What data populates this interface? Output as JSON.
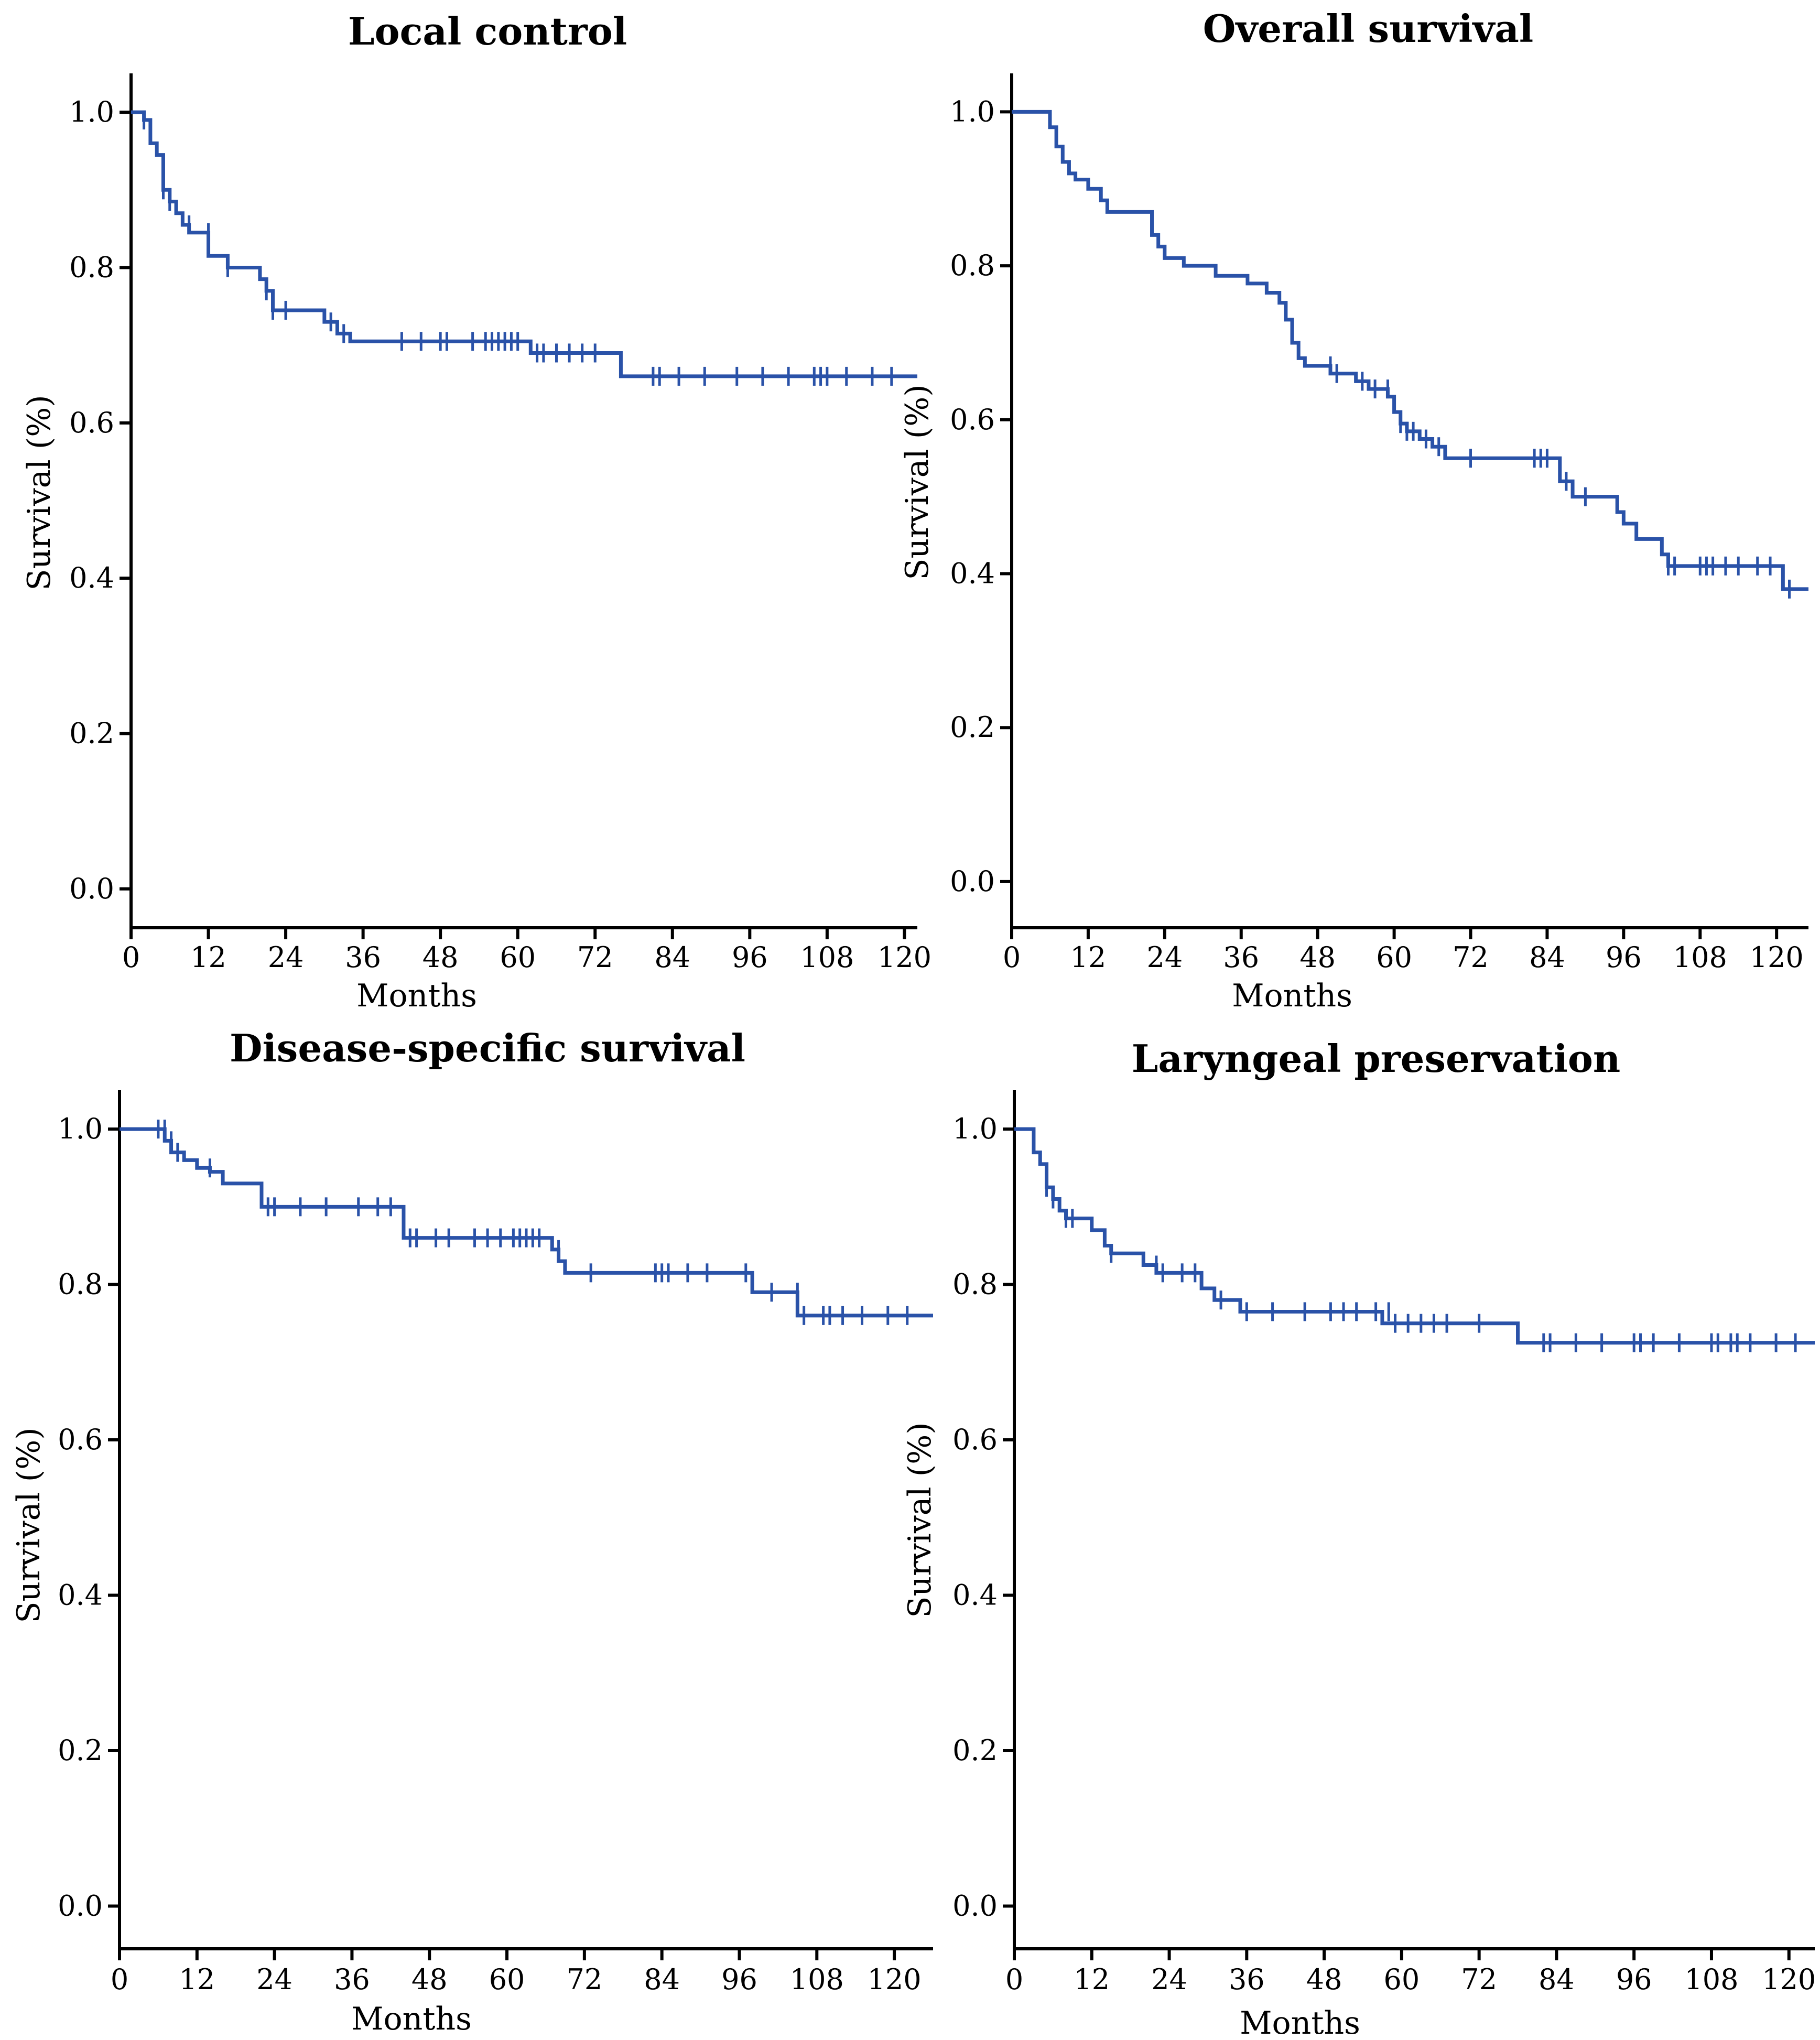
{
  "chart_data": [
    {
      "type": "line",
      "subtype": "kaplan-meier",
      "title": "Local control",
      "xlabel": "Months",
      "ylabel": "Survival (%)",
      "xlim": [
        0,
        122
      ],
      "ylim": [
        -0.05,
        1.05
      ],
      "xticks": [
        0,
        12,
        24,
        36,
        48,
        60,
        72,
        84,
        96,
        108,
        120
      ],
      "yticks": [
        "0.0",
        "0.2",
        "0.4",
        "0.6",
        "0.8",
        "1.0"
      ],
      "steps": [
        [
          0,
          1.0
        ],
        [
          2,
          0.99
        ],
        [
          3,
          0.96
        ],
        [
          4,
          0.945
        ],
        [
          5,
          0.9
        ],
        [
          6,
          0.885
        ],
        [
          7,
          0.87
        ],
        [
          8,
          0.855
        ],
        [
          9,
          0.845
        ],
        [
          12,
          0.815
        ],
        [
          15,
          0.8
        ],
        [
          20,
          0.785
        ],
        [
          21,
          0.77
        ],
        [
          22,
          0.745
        ],
        [
          30,
          0.73
        ],
        [
          32,
          0.715
        ],
        [
          34,
          0.705
        ],
        [
          62,
          0.69
        ],
        [
          76,
          0.66
        ]
      ],
      "censored": [
        [
          2,
          0.99
        ],
        [
          5,
          0.9
        ],
        [
          6,
          0.885
        ],
        [
          9,
          0.855
        ],
        [
          12,
          0.845
        ],
        [
          15,
          0.8
        ],
        [
          21,
          0.77
        ],
        [
          22,
          0.745
        ],
        [
          24,
          0.745
        ],
        [
          31,
          0.73
        ],
        [
          33,
          0.715
        ],
        [
          42,
          0.705
        ],
        [
          45,
          0.705
        ],
        [
          48,
          0.705
        ],
        [
          49,
          0.705
        ],
        [
          53,
          0.705
        ],
        [
          55,
          0.705
        ],
        [
          56,
          0.705
        ],
        [
          57,
          0.705
        ],
        [
          58,
          0.705
        ],
        [
          59,
          0.705
        ],
        [
          60,
          0.705
        ],
        [
          63,
          0.69
        ],
        [
          64,
          0.69
        ],
        [
          66,
          0.69
        ],
        [
          68,
          0.69
        ],
        [
          70,
          0.69
        ],
        [
          72,
          0.69
        ],
        [
          81,
          0.66
        ],
        [
          82,
          0.66
        ],
        [
          85,
          0.66
        ],
        [
          89,
          0.66
        ],
        [
          94,
          0.66
        ],
        [
          98,
          0.66
        ],
        [
          102,
          0.66
        ],
        [
          106,
          0.66
        ],
        [
          107,
          0.66
        ],
        [
          108,
          0.66
        ],
        [
          111,
          0.66
        ],
        [
          115,
          0.66
        ],
        [
          118,
          0.66
        ]
      ]
    },
    {
      "type": "line",
      "subtype": "kaplan-meier",
      "title": "Overall survival",
      "xlabel": "Months",
      "ylabel": "Survival (%)",
      "xlim": [
        0,
        125
      ],
      "ylim": [
        -0.06,
        1.05
      ],
      "xticks": [
        0,
        12,
        24,
        36,
        48,
        60,
        72,
        84,
        96,
        108,
        120
      ],
      "yticks": [
        "0.0",
        "0.2",
        "0.4",
        "0.6",
        "0.8",
        "1.0"
      ],
      "steps": [
        [
          0,
          1.0
        ],
        [
          6,
          0.98
        ],
        [
          7,
          0.955
        ],
        [
          8,
          0.935
        ],
        [
          9,
          0.92
        ],
        [
          10,
          0.912
        ],
        [
          12,
          0.9
        ],
        [
          14,
          0.885
        ],
        [
          15,
          0.87
        ],
        [
          22,
          0.84
        ],
        [
          23,
          0.825
        ],
        [
          24,
          0.81
        ],
        [
          27,
          0.8
        ],
        [
          32,
          0.787
        ],
        [
          37,
          0.777
        ],
        [
          40,
          0.765
        ],
        [
          42,
          0.752
        ],
        [
          43,
          0.73
        ],
        [
          44,
          0.7
        ],
        [
          45,
          0.68
        ],
        [
          46,
          0.67
        ],
        [
          50,
          0.66
        ],
        [
          54,
          0.65
        ],
        [
          56,
          0.64
        ],
        [
          59,
          0.63
        ],
        [
          60,
          0.61
        ],
        [
          61,
          0.595
        ],
        [
          62,
          0.585
        ],
        [
          64,
          0.575
        ],
        [
          66,
          0.565
        ],
        [
          68,
          0.55
        ],
        [
          86,
          0.52
        ],
        [
          88,
          0.5
        ],
        [
          95,
          0.48
        ],
        [
          96,
          0.465
        ],
        [
          98,
          0.445
        ],
        [
          102,
          0.425
        ],
        [
          103,
          0.41
        ],
        [
          121,
          0.38
        ]
      ],
      "censored": [
        [
          50,
          0.67
        ],
        [
          51,
          0.66
        ],
        [
          55,
          0.65
        ],
        [
          57,
          0.64
        ],
        [
          59,
          0.64
        ],
        [
          61,
          0.595
        ],
        [
          62,
          0.585
        ],
        [
          63,
          0.585
        ],
        [
          65,
          0.575
        ],
        [
          67,
          0.565
        ],
        [
          72,
          0.55
        ],
        [
          82,
          0.55
        ],
        [
          83,
          0.55
        ],
        [
          84,
          0.55
        ],
        [
          87,
          0.52
        ],
        [
          90,
          0.5
        ],
        [
          103,
          0.41
        ],
        [
          104,
          0.41
        ],
        [
          108,
          0.41
        ],
        [
          109,
          0.41
        ],
        [
          110,
          0.41
        ],
        [
          112,
          0.41
        ],
        [
          114,
          0.41
        ],
        [
          117,
          0.41
        ],
        [
          119,
          0.41
        ],
        [
          122,
          0.38
        ]
      ]
    },
    {
      "type": "line",
      "subtype": "kaplan-meier",
      "title": "Disease-specific survival",
      "xlabel": "Months",
      "ylabel": "Survival (%)",
      "xlim": [
        0,
        126
      ],
      "ylim": [
        -0.055,
        1.05
      ],
      "xticks": [
        0,
        12,
        24,
        36,
        48,
        60,
        72,
        84,
        96,
        108,
        120
      ],
      "yticks": [
        "0.0",
        "0.2",
        "0.4",
        "0.6",
        "0.8",
        "1.0"
      ],
      "steps": [
        [
          0,
          1.0
        ],
        [
          7,
          0.985
        ],
        [
          8,
          0.97
        ],
        [
          10,
          0.96
        ],
        [
          12,
          0.95
        ],
        [
          14,
          0.945
        ],
        [
          16,
          0.93
        ],
        [
          22,
          0.9
        ],
        [
          44,
          0.86
        ],
        [
          67,
          0.845
        ],
        [
          68,
          0.83
        ],
        [
          69,
          0.815
        ],
        [
          98,
          0.79
        ],
        [
          105,
          0.76
        ]
      ],
      "censored": [
        [
          6,
          1.0
        ],
        [
          7,
          1.0
        ],
        [
          8,
          0.985
        ],
        [
          9,
          0.97
        ],
        [
          14,
          0.95
        ],
        [
          23,
          0.9
        ],
        [
          24,
          0.9
        ],
        [
          28,
          0.9
        ],
        [
          32,
          0.9
        ],
        [
          37,
          0.9
        ],
        [
          40,
          0.9
        ],
        [
          42,
          0.9
        ],
        [
          45,
          0.86
        ],
        [
          46,
          0.86
        ],
        [
          49,
          0.86
        ],
        [
          51,
          0.86
        ],
        [
          55,
          0.86
        ],
        [
          57,
          0.86
        ],
        [
          59,
          0.86
        ],
        [
          61,
          0.86
        ],
        [
          62,
          0.86
        ],
        [
          63,
          0.86
        ],
        [
          64,
          0.86
        ],
        [
          65,
          0.86
        ],
        [
          68,
          0.845
        ],
        [
          73,
          0.815
        ],
        [
          83,
          0.815
        ],
        [
          84,
          0.815
        ],
        [
          85,
          0.815
        ],
        [
          88,
          0.815
        ],
        [
          91,
          0.815
        ],
        [
          97,
          0.815
        ],
        [
          101,
          0.79
        ],
        [
          105,
          0.79
        ],
        [
          106,
          0.76
        ],
        [
          109,
          0.76
        ],
        [
          110,
          0.76
        ],
        [
          112,
          0.76
        ],
        [
          115,
          0.76
        ],
        [
          119,
          0.76
        ],
        [
          122,
          0.76
        ]
      ]
    },
    {
      "type": "line",
      "subtype": "kaplan-meier",
      "title": "Laryngeal preservation",
      "xlabel": "Months",
      "ylabel": "Survival (%)",
      "xlim": [
        0,
        124
      ],
      "ylim": [
        -0.055,
        1.05
      ],
      "xticks": [
        0,
        12,
        24,
        36,
        48,
        60,
        72,
        84,
        96,
        108,
        120
      ],
      "yticks": [
        "0.0",
        "0.2",
        "0.4",
        "0.6",
        "0.8",
        "1.0"
      ],
      "steps": [
        [
          0,
          1.0
        ],
        [
          3,
          0.97
        ],
        [
          4,
          0.955
        ],
        [
          5,
          0.925
        ],
        [
          6,
          0.91
        ],
        [
          7,
          0.895
        ],
        [
          8,
          0.885
        ],
        [
          12,
          0.87
        ],
        [
          14,
          0.85
        ],
        [
          15,
          0.84
        ],
        [
          20,
          0.825
        ],
        [
          22,
          0.815
        ],
        [
          29,
          0.795
        ],
        [
          31,
          0.78
        ],
        [
          35,
          0.765
        ],
        [
          57,
          0.75
        ],
        [
          78,
          0.725
        ]
      ],
      "censored": [
        [
          5,
          0.925
        ],
        [
          6,
          0.91
        ],
        [
          8,
          0.885
        ],
        [
          9,
          0.885
        ],
        [
          15,
          0.84
        ],
        [
          22,
          0.825
        ],
        [
          23,
          0.815
        ],
        [
          26,
          0.815
        ],
        [
          28,
          0.815
        ],
        [
          32,
          0.78
        ],
        [
          36,
          0.765
        ],
        [
          40,
          0.765
        ],
        [
          45,
          0.765
        ],
        [
          49,
          0.765
        ],
        [
          51,
          0.765
        ],
        [
          53,
          0.765
        ],
        [
          56,
          0.765
        ],
        [
          58,
          0.765
        ],
        [
          59,
          0.75
        ],
        [
          61,
          0.75
        ],
        [
          63,
          0.75
        ],
        [
          65,
          0.75
        ],
        [
          67,
          0.75
        ],
        [
          72,
          0.75
        ],
        [
          82,
          0.725
        ],
        [
          83,
          0.725
        ],
        [
          87,
          0.725
        ],
        [
          91,
          0.725
        ],
        [
          96,
          0.725
        ],
        [
          97,
          0.725
        ],
        [
          99,
          0.725
        ],
        [
          103,
          0.725
        ],
        [
          108,
          0.725
        ],
        [
          109,
          0.725
        ],
        [
          111,
          0.725
        ],
        [
          112,
          0.725
        ],
        [
          114,
          0.725
        ],
        [
          118,
          0.725
        ],
        [
          121,
          0.725
        ]
      ]
    }
  ]
}
